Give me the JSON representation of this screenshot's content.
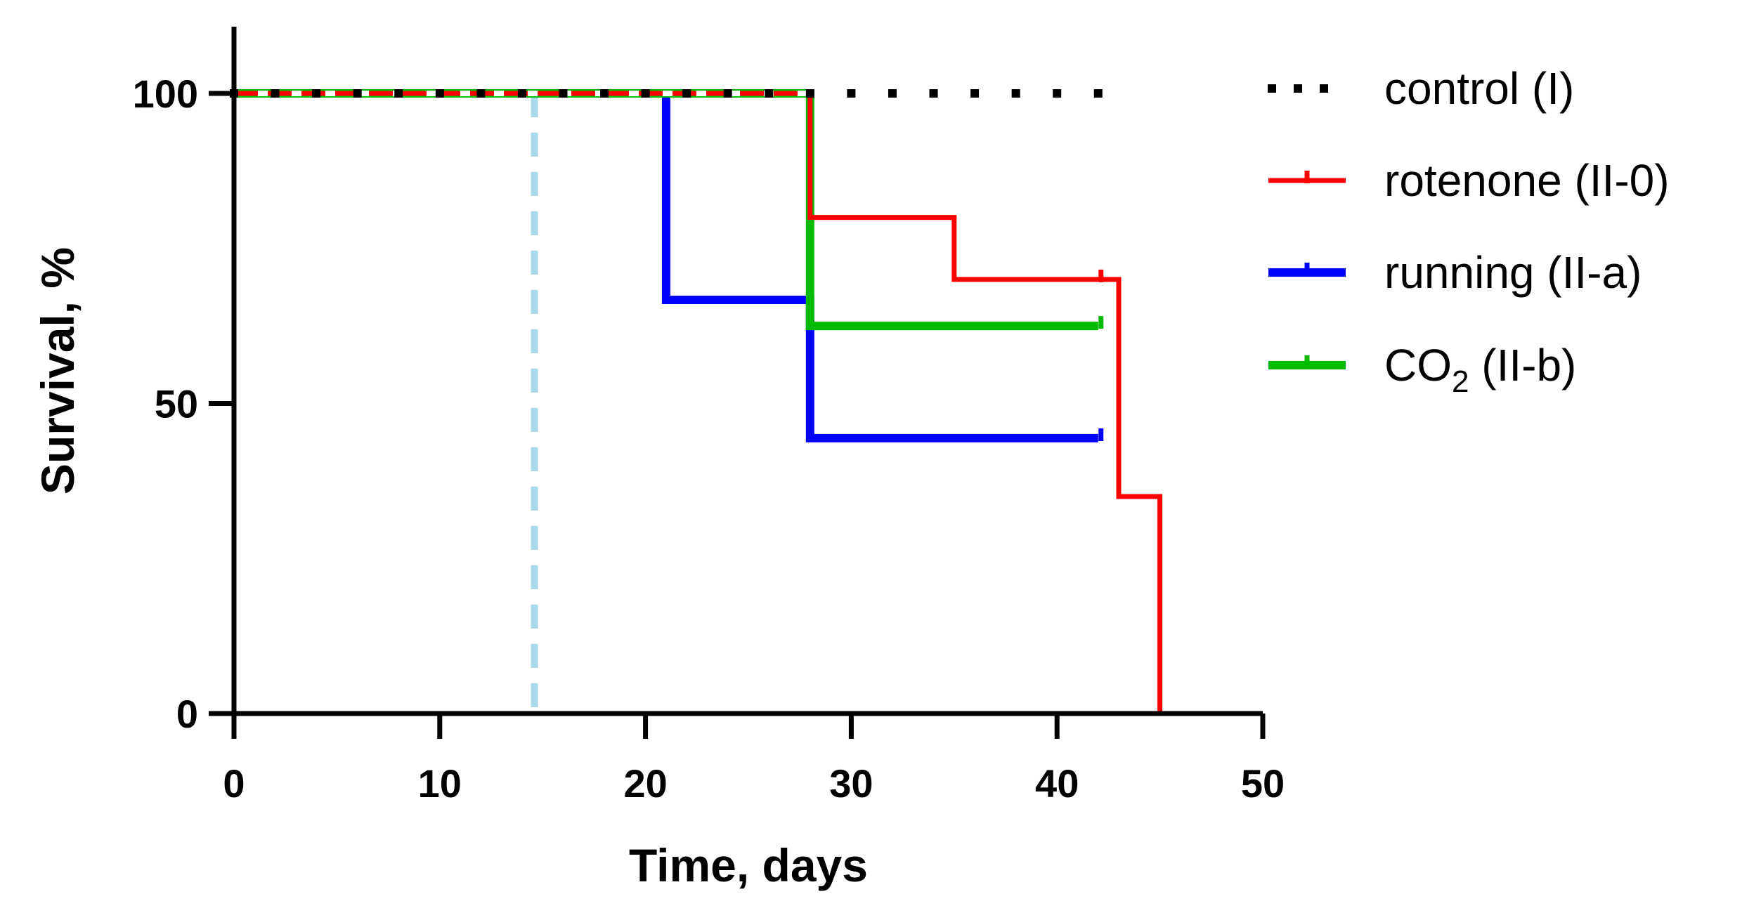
{
  "chart_data": {
    "type": "line",
    "subtype": "kaplan-meier survival (step)",
    "xlabel": "Time, days",
    "ylabel": "Survival, %",
    "xlim": [
      0,
      50
    ],
    "ylim": [
      0,
      110
    ],
    "xticks": [
      0,
      10,
      20,
      30,
      40,
      50
    ],
    "yticks": [
      0,
      50,
      100
    ],
    "grid": false,
    "legend_position": "right",
    "reference_line": {
      "x": 14.6,
      "color": "#a8d8ea",
      "style": "dashed"
    },
    "series": [
      {
        "name": "control (I)",
        "color": "#000000",
        "style": "dotted",
        "x": [
          0,
          42
        ],
        "y": [
          100,
          100
        ],
        "censored_x": [
          42
        ]
      },
      {
        "name": "rotenone (II-0)",
        "color": "#ff0000",
        "style": "solid",
        "x": [
          0,
          28,
          35,
          43,
          45
        ],
        "y": [
          100,
          80,
          70,
          35,
          0
        ],
        "censored_x": [
          42
        ]
      },
      {
        "name": "running (II-a)",
        "color": "#0000ff",
        "style": "solid",
        "x": [
          0,
          21,
          28,
          42
        ],
        "y": [
          100,
          66.7,
          44.4,
          44.4
        ],
        "censored_x": [
          42
        ]
      },
      {
        "name": "CO2 (II-b)",
        "name_main": "CO",
        "name_sub": "2",
        "name_suffix": " (II-b)",
        "color": "#00bb00",
        "style": "solid",
        "x": [
          0,
          28,
          42
        ],
        "y": [
          100,
          62.5,
          62.5
        ],
        "censored_x": [
          42
        ]
      }
    ]
  }
}
